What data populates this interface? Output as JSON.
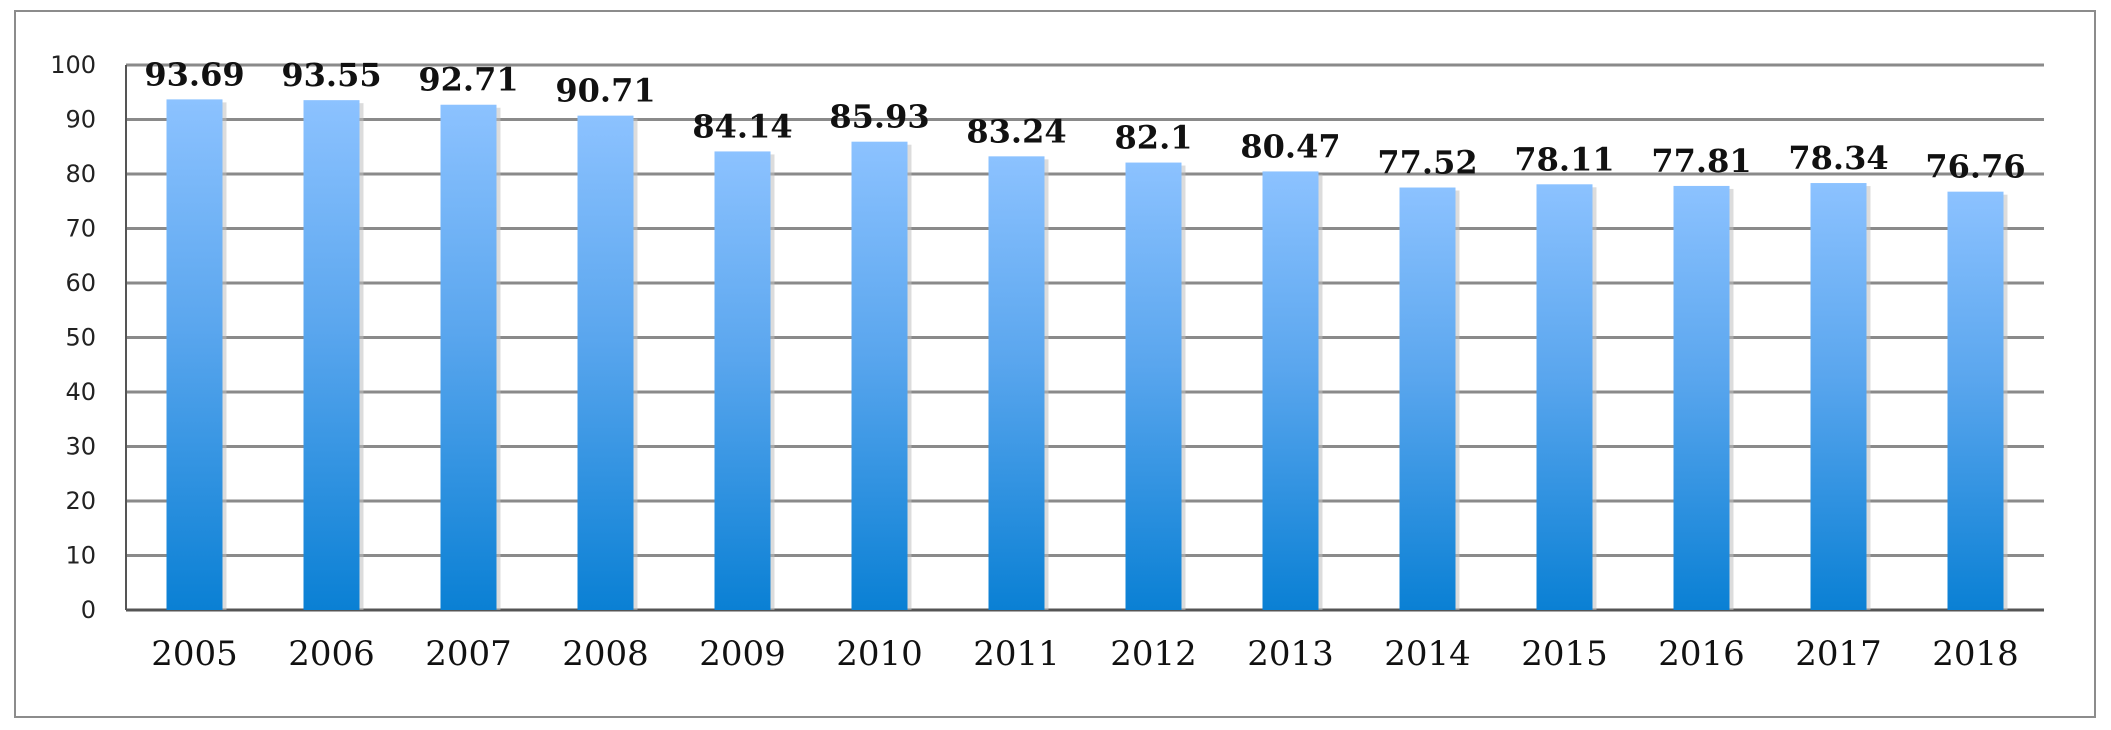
{
  "chart_data": {
    "type": "bar",
    "title": "",
    "xlabel": "",
    "ylabel": "",
    "categories": [
      "2005",
      "2006",
      "2007",
      "2008",
      "2009",
      "2010",
      "2011",
      "2012",
      "2013",
      "2014",
      "2015",
      "2016",
      "2017",
      "2018"
    ],
    "values": [
      93.69,
      93.55,
      92.71,
      90.71,
      84.14,
      85.93,
      83.24,
      82.1,
      80.47,
      77.52,
      78.11,
      77.81,
      78.34,
      76.76
    ],
    "value_labels": [
      "93.69",
      "93.55",
      "92.71",
      "90.71",
      "84.14",
      "85.93",
      "83.24",
      "82.1",
      "80.47",
      "77.52",
      "78.11",
      "77.81",
      "78.34",
      "76.76"
    ],
    "ylim": [
      0,
      100
    ],
    "yticks": [
      0,
      10,
      20,
      30,
      40,
      50,
      60,
      70,
      80,
      90,
      100
    ],
    "grid": true,
    "legend": "none",
    "colors": {
      "bar_top": "#8cc2ff",
      "bar_bottom": "#0a80d4",
      "grid": "#8a8a8a"
    }
  }
}
